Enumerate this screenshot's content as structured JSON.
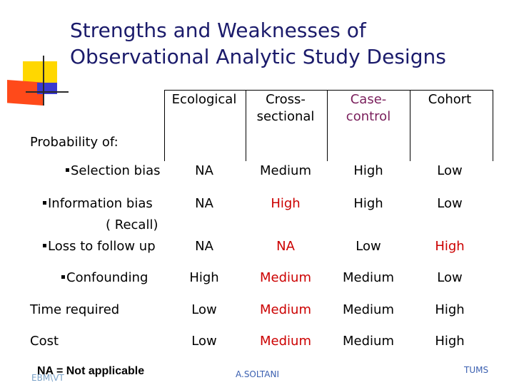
{
  "title": {
    "line1": "Strengths and Weaknesses of",
    "line2": "Observational Analytic Study Designs"
  },
  "table": {
    "columns": [
      {
        "label_line1": "Ecological",
        "label_line2": "",
        "color": "#000000"
      },
      {
        "label_line1": "Cross-",
        "label_line2": "sectional",
        "color": "#000000"
      },
      {
        "label_line1": "Case-",
        "label_line2": "control",
        "color": "#7a1f5c"
      },
      {
        "label_line1": "Cohort",
        "label_line2": "",
        "color": "#000000"
      }
    ],
    "section_label": "Probability of:",
    "rows": [
      {
        "label": "Selection bias",
        "label_extra": "",
        "bullet": true,
        "values": [
          {
            "text": "NA",
            "color": "#000000"
          },
          {
            "text": "Medium",
            "color": "#000000"
          },
          {
            "text": "High",
            "color": "#000000"
          },
          {
            "text": "Low",
            "color": "#000000"
          }
        ]
      },
      {
        "label": "Information bias",
        "label_extra": "( Recall)",
        "bullet": true,
        "values": [
          {
            "text": "NA",
            "color": "#000000"
          },
          {
            "text": "High",
            "color": "#cc0000"
          },
          {
            "text": "High",
            "color": "#000000"
          },
          {
            "text": "Low",
            "color": "#000000"
          }
        ]
      },
      {
        "label": "Loss to follow up",
        "label_extra": "",
        "bullet": true,
        "values": [
          {
            "text": "NA",
            "color": "#000000"
          },
          {
            "text": "NA",
            "color": "#cc0000"
          },
          {
            "text": "Low",
            "color": "#000000"
          },
          {
            "text": "High",
            "color": "#cc0000"
          }
        ]
      },
      {
        "label": "Confounding",
        "label_extra": "",
        "bullet": true,
        "values": [
          {
            "text": "High",
            "color": "#000000"
          },
          {
            "text": "Medium",
            "color": "#cc0000"
          },
          {
            "text": "Medium",
            "color": "#000000"
          },
          {
            "text": "Low",
            "color": "#000000"
          }
        ]
      },
      {
        "label": "Time required",
        "label_extra": "",
        "bullet": false,
        "values": [
          {
            "text": "Low",
            "color": "#000000"
          },
          {
            "text": "Medium",
            "color": "#cc0000"
          },
          {
            "text": "Medium",
            "color": "#000000"
          },
          {
            "text": "High",
            "color": "#000000"
          }
        ]
      },
      {
        "label": "Cost",
        "label_extra": "",
        "bullet": false,
        "values": [
          {
            "text": "Low",
            "color": "#000000"
          },
          {
            "text": "Medium",
            "color": "#cc0000"
          },
          {
            "text": "Medium",
            "color": "#000000"
          },
          {
            "text": "High",
            "color": "#000000"
          }
        ]
      }
    ]
  },
  "footer": {
    "note": "NA = Not applicable",
    "ghost": "EBM\\VT",
    "center": "A.SOLTANI",
    "right": "TUMS"
  }
}
